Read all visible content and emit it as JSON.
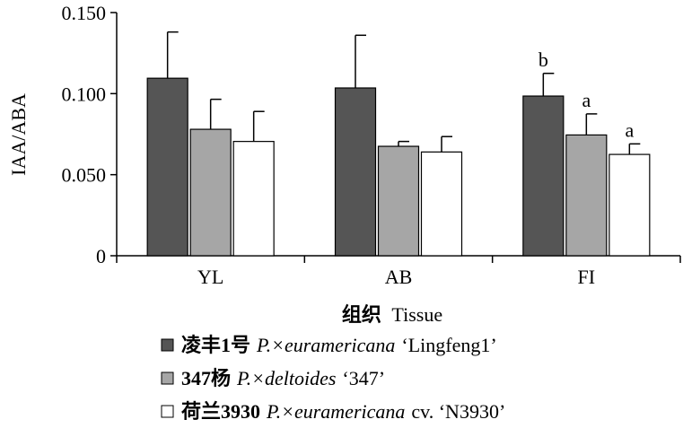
{
  "chart_data": {
    "type": "bar",
    "title": "",
    "ylabel": "IAA/ABA",
    "xlabel_cn": "组织",
    "xlabel_en": "Tissue",
    "ylim": [
      0,
      0.15
    ],
    "yticks": [
      0,
      0.05,
      0.1,
      0.15
    ],
    "ytick_labels": [
      "0",
      "0.050",
      "0.100",
      "0.150"
    ],
    "categories": [
      "YL",
      "AB",
      "FI"
    ],
    "series": [
      {
        "legend_cn": "凌丰1号",
        "legend_sci": "P.×euramericana",
        "legend_cultivar": "‘Lingfeng1’",
        "color": "#555555",
        "values": [
          0.1095,
          0.1035,
          0.0985
        ],
        "errors": [
          0.0285,
          0.0325,
          0.014
        ],
        "sig": [
          "",
          "",
          "b"
        ]
      },
      {
        "legend_cn": "347杨",
        "legend_sci": "P.×deltoides",
        "legend_cultivar": "‘347’",
        "color": "#a6a6a6",
        "values": [
          0.078,
          0.0675,
          0.0745
        ],
        "errors": [
          0.0185,
          0.003,
          0.013
        ],
        "sig": [
          "",
          "",
          "a"
        ]
      },
      {
        "legend_cn": "荷兰3930",
        "legend_sci": "P.×euramericana",
        "legend_cultivar": "cv. ‘N3930’",
        "color": "#ffffff",
        "values": [
          0.0705,
          0.064,
          0.0625
        ],
        "errors": [
          0.0185,
          0.0095,
          0.0065
        ],
        "sig": [
          "",
          "",
          "a"
        ]
      }
    ],
    "grid": false,
    "legend_position": "bottom"
  }
}
